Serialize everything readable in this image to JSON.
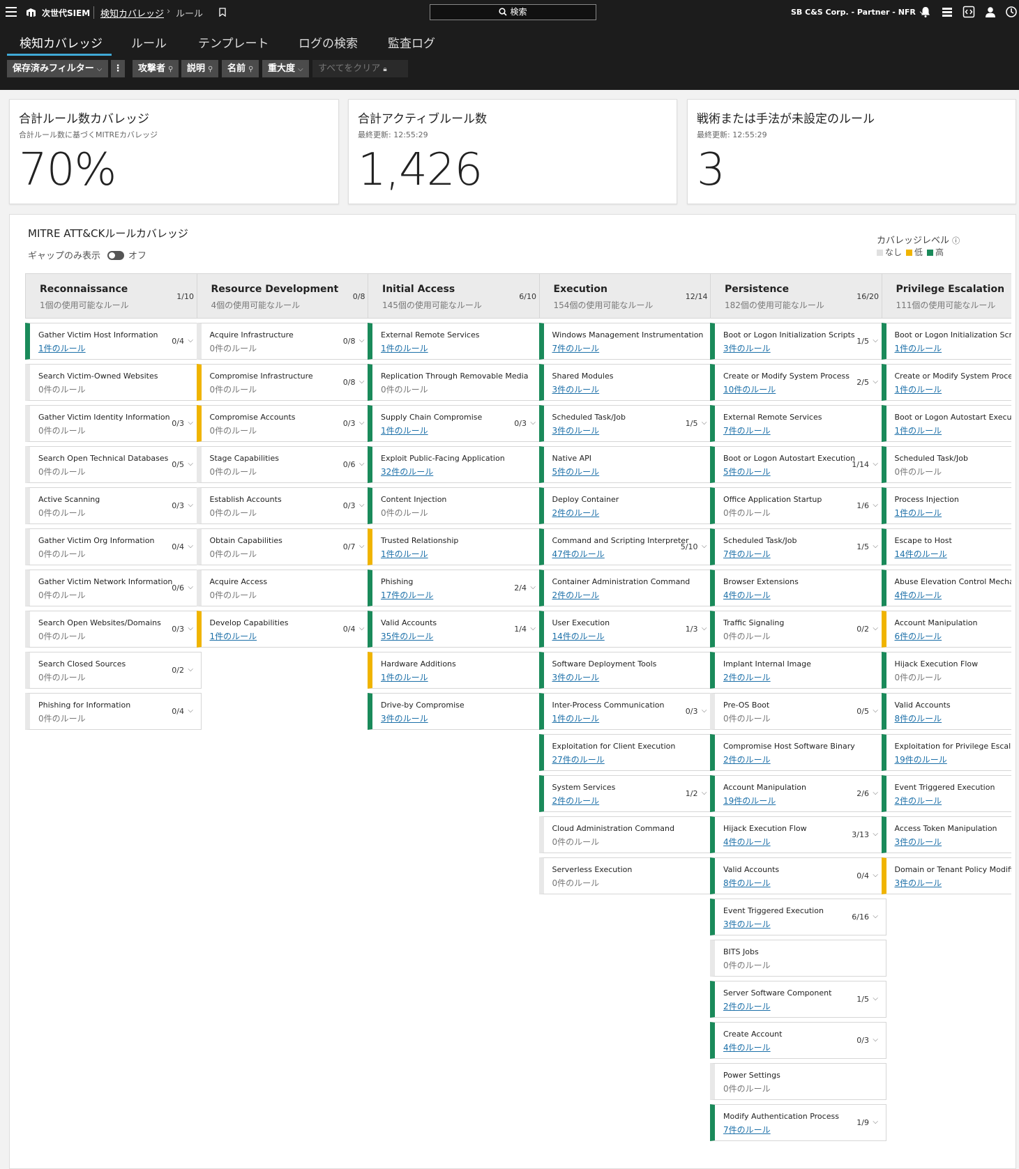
{
  "topbar": {
    "brand": "次世代SIEM",
    "breadcrumb_parent": "検知カバレッジ",
    "breadcrumb_sep": "›",
    "breadcrumb_current": "ルール",
    "search_label": "検索",
    "account": "SB C&S Corp. - Partner - NFR",
    "icons": [
      "menu-icon",
      "logo-icon",
      "bookmark-icon",
      "search-icon",
      "bell-icon",
      "stack-icon",
      "code-icon",
      "user-icon",
      "clock-icon"
    ]
  },
  "nav": {
    "tabs": [
      {
        "label": "検知カバレッジ",
        "active": true
      },
      {
        "label": "ルール"
      },
      {
        "label": "テンプレート"
      },
      {
        "label": "ログの検索"
      },
      {
        "label": "監査ログ"
      }
    ]
  },
  "filters": {
    "saved": "保存済みフィルター",
    "attacker": "攻撃者",
    "description": "説明",
    "name": "名前",
    "severity": "重大度",
    "clear_all": "すべてをクリア"
  },
  "cards": [
    {
      "title": "合計ルール数カバレッジ",
      "sub": "合計ルール数に基づくMITREカバレッジ",
      "value": "70%"
    },
    {
      "title": "合計アクティブルール数",
      "sub": "最終更新: 12:55:29",
      "value": "1,426"
    },
    {
      "title": "戦術または手法が未設定のルール",
      "sub": "最終更新: 12:55:29",
      "value": "3"
    }
  ],
  "mitre": {
    "title": "MITRE ATT&CKルールカバレッジ",
    "gap_label": "ギャップのみ表示",
    "gap_state": "オフ",
    "legend_title": "カバレッジレベル",
    "legend": [
      {
        "label": "なし",
        "color": "#e0e0e0"
      },
      {
        "label": "低",
        "color": "#f0b400"
      },
      {
        "label": "高",
        "color": "#1a8a5a"
      }
    ],
    "columns": [
      {
        "name": "Reconnaissance",
        "avail": "1個の使用可能なルール",
        "count": "1/10",
        "techniques": [
          {
            "name": "Gather Victim Host Information",
            "rules": "1件のルール",
            "count": "0/4",
            "level": "high"
          },
          {
            "name": "Search Victim-Owned Websites",
            "rules": "0件のルール",
            "count": "",
            "level": "none"
          },
          {
            "name": "Gather Victim Identity Information",
            "rules": "0件のルール",
            "count": "0/3",
            "level": "none"
          },
          {
            "name": "Search Open Technical Databases",
            "rules": "0件のルール",
            "count": "0/5",
            "level": "none"
          },
          {
            "name": "Active Scanning",
            "rules": "0件のルール",
            "count": "0/3",
            "level": "none"
          },
          {
            "name": "Gather Victim Org Information",
            "rules": "0件のルール",
            "count": "0/4",
            "level": "none"
          },
          {
            "name": "Gather Victim Network Information",
            "rules": "0件のルール",
            "count": "0/6",
            "level": "none"
          },
          {
            "name": "Search Open Websites/Domains",
            "rules": "0件のルール",
            "count": "0/3",
            "level": "none"
          },
          {
            "name": "Search Closed Sources",
            "rules": "0件のルール",
            "count": "0/2",
            "level": "none"
          },
          {
            "name": "Phishing for Information",
            "rules": "0件のルール",
            "count": "0/4",
            "level": "none"
          }
        ]
      },
      {
        "name": "Resource Development",
        "avail": "4個の使用可能なルール",
        "count": "0/8",
        "techniques": [
          {
            "name": "Acquire Infrastructure",
            "rules": "0件のルール",
            "count": "0/8",
            "level": "none"
          },
          {
            "name": "Compromise Infrastructure",
            "rules": "0件のルール",
            "count": "0/8",
            "level": "low"
          },
          {
            "name": "Compromise Accounts",
            "rules": "0件のルール",
            "count": "0/3",
            "level": "low"
          },
          {
            "name": "Stage Capabilities",
            "rules": "0件のルール",
            "count": "0/6",
            "level": "none"
          },
          {
            "name": "Establish Accounts",
            "rules": "0件のルール",
            "count": "0/3",
            "level": "none"
          },
          {
            "name": "Obtain Capabilities",
            "rules": "0件のルール",
            "count": "0/7",
            "level": "none"
          },
          {
            "name": "Acquire Access",
            "rules": "0件のルール",
            "count": "",
            "level": "none"
          },
          {
            "name": "Develop Capabilities",
            "rules": "1件のルール",
            "count": "0/4",
            "level": "low"
          }
        ]
      },
      {
        "name": "Initial Access",
        "avail": "145個の使用可能なルール",
        "count": "6/10",
        "techniques": [
          {
            "name": "External Remote Services",
            "rules": "1件のルール",
            "count": "",
            "level": "high"
          },
          {
            "name": "Replication Through Removable Media",
            "rules": "0件のルール",
            "count": "",
            "level": "high"
          },
          {
            "name": "Supply Chain Compromise",
            "rules": "1件のルール",
            "count": "0/3",
            "level": "high"
          },
          {
            "name": "Exploit Public-Facing Application",
            "rules": "32件のルール",
            "count": "",
            "level": "high"
          },
          {
            "name": "Content Injection",
            "rules": "0件のルール",
            "count": "",
            "level": "high"
          },
          {
            "name": "Trusted Relationship",
            "rules": "1件のルール",
            "count": "",
            "level": "low"
          },
          {
            "name": "Phishing",
            "rules": "17件のルール",
            "count": "2/4",
            "level": "high"
          },
          {
            "name": "Valid Accounts",
            "rules": "35件のルール",
            "count": "1/4",
            "level": "high"
          },
          {
            "name": "Hardware Additions",
            "rules": "1件のルール",
            "count": "",
            "level": "low"
          },
          {
            "name": "Drive-by Compromise",
            "rules": "3件のルール",
            "count": "",
            "level": "high"
          }
        ]
      },
      {
        "name": "Execution",
        "avail": "154個の使用可能なルール",
        "count": "12/14",
        "techniques": [
          {
            "name": "Windows Management Instrumentation",
            "rules": "7件のルール",
            "count": "",
            "level": "high"
          },
          {
            "name": "Shared Modules",
            "rules": "3件のルール",
            "count": "",
            "level": "high"
          },
          {
            "name": "Scheduled Task/Job",
            "rules": "3件のルール",
            "count": "1/5",
            "level": "high"
          },
          {
            "name": "Native API",
            "rules": "5件のルール",
            "count": "",
            "level": "high"
          },
          {
            "name": "Deploy Container",
            "rules": "2件のルール",
            "count": "",
            "level": "high"
          },
          {
            "name": "Command and Scripting Interpreter",
            "rules": "47件のルール",
            "count": "5/10",
            "level": "high"
          },
          {
            "name": "Container Administration Command",
            "rules": "2件のルール",
            "count": "",
            "level": "high"
          },
          {
            "name": "User Execution",
            "rules": "14件のルール",
            "count": "1/3",
            "level": "high"
          },
          {
            "name": "Software Deployment Tools",
            "rules": "3件のルール",
            "count": "",
            "level": "high"
          },
          {
            "name": "Inter-Process Communication",
            "rules": "1件のルール",
            "count": "0/3",
            "level": "high"
          },
          {
            "name": "Exploitation for Client Execution",
            "rules": "27件のルール",
            "count": "",
            "level": "high"
          },
          {
            "name": "System Services",
            "rules": "2件のルール",
            "count": "1/2",
            "level": "high"
          },
          {
            "name": "Cloud Administration Command",
            "rules": "0件のルール",
            "count": "",
            "level": "none"
          },
          {
            "name": "Serverless Execution",
            "rules": "0件のルール",
            "count": "",
            "level": "none"
          }
        ]
      },
      {
        "name": "Persistence",
        "avail": "182個の使用可能なルール",
        "count": "16/20",
        "techniques": [
          {
            "name": "Boot or Logon Initialization Scripts",
            "rules": "3件のルール",
            "count": "1/5",
            "level": "high"
          },
          {
            "name": "Create or Modify System Process",
            "rules": "10件のルール",
            "count": "2/5",
            "level": "high"
          },
          {
            "name": "External Remote Services",
            "rules": "7件のルール",
            "count": "",
            "level": "high"
          },
          {
            "name": "Boot or Logon Autostart Execution",
            "rules": "5件のルール",
            "count": "1/14",
            "level": "high"
          },
          {
            "name": "Office Application Startup",
            "rules": "0件のルール",
            "count": "1/6",
            "level": "high"
          },
          {
            "name": "Scheduled Task/Job",
            "rules": "7件のルール",
            "count": "1/5",
            "level": "high"
          },
          {
            "name": "Browser Extensions",
            "rules": "4件のルール",
            "count": "",
            "level": "high"
          },
          {
            "name": "Traffic Signaling",
            "rules": "0件のルール",
            "count": "0/2",
            "level": "high"
          },
          {
            "name": "Implant Internal Image",
            "rules": "2件のルール",
            "count": "",
            "level": "high"
          },
          {
            "name": "Pre-OS Boot",
            "rules": "0件のルール",
            "count": "0/5",
            "level": "none"
          },
          {
            "name": "Compromise Host Software Binary",
            "rules": "2件のルール",
            "count": "",
            "level": "high"
          },
          {
            "name": "Account Manipulation",
            "rules": "19件のルール",
            "count": "2/6",
            "level": "high"
          },
          {
            "name": "Hijack Execution Flow",
            "rules": "4件のルール",
            "count": "3/13",
            "level": "high"
          },
          {
            "name": "Valid Accounts",
            "rules": "8件のルール",
            "count": "0/4",
            "level": "high"
          },
          {
            "name": "Event Triggered Execution",
            "rules": "3件のルール",
            "count": "6/16",
            "level": "high"
          },
          {
            "name": "BITS Jobs",
            "rules": "0件のルール",
            "count": "",
            "level": "none"
          },
          {
            "name": "Server Software Component",
            "rules": "2件のルール",
            "count": "1/5",
            "level": "high"
          },
          {
            "name": "Create Account",
            "rules": "4件のルール",
            "count": "0/3",
            "level": "high"
          },
          {
            "name": "Power Settings",
            "rules": "0件のルール",
            "count": "",
            "level": "none"
          },
          {
            "name": "Modify Authentication Process",
            "rules": "7件のルール",
            "count": "1/9",
            "level": "high"
          }
        ]
      },
      {
        "name": "Privilege Escalation",
        "avail": "111個の使用可能なルール",
        "count": "",
        "techniques": [
          {
            "name": "Boot or Logon Initialization Scripts",
            "rules": "1件のルール",
            "count": "",
            "level": "high"
          },
          {
            "name": "Create or Modify System Process",
            "rules": "1件のルール",
            "count": "",
            "level": "high"
          },
          {
            "name": "Boot or Logon Autostart Execution",
            "rules": "1件のルール",
            "count": "",
            "level": "high"
          },
          {
            "name": "Scheduled Task/Job",
            "rules": "0件のルール",
            "count": "",
            "level": "high"
          },
          {
            "name": "Process Injection",
            "rules": "1件のルール",
            "count": "",
            "level": "high"
          },
          {
            "name": "Escape to Host",
            "rules": "14件のルール",
            "count": "",
            "level": "high"
          },
          {
            "name": "Abuse Elevation Control Mechanism",
            "rules": "4件のルール",
            "count": "",
            "level": "high"
          },
          {
            "name": "Account Manipulation",
            "rules": "6件のルール",
            "count": "",
            "level": "low"
          },
          {
            "name": "Hijack Execution Flow",
            "rules": "0件のルール",
            "count": "",
            "level": "high"
          },
          {
            "name": "Valid Accounts",
            "rules": "8件のルール",
            "count": "",
            "level": "high"
          },
          {
            "name": "Exploitation for Privilege Escalation",
            "rules": "19件のルール",
            "count": "",
            "level": "high"
          },
          {
            "name": "Event Triggered Execution",
            "rules": "2件のルール",
            "count": "",
            "level": "high"
          },
          {
            "name": "Access Token Manipulation",
            "rules": "3件のルール",
            "count": "",
            "level": "high"
          },
          {
            "name": "Domain or Tenant Policy Modification",
            "rules": "3件のルール",
            "count": "",
            "level": "low"
          }
        ]
      }
    ]
  }
}
